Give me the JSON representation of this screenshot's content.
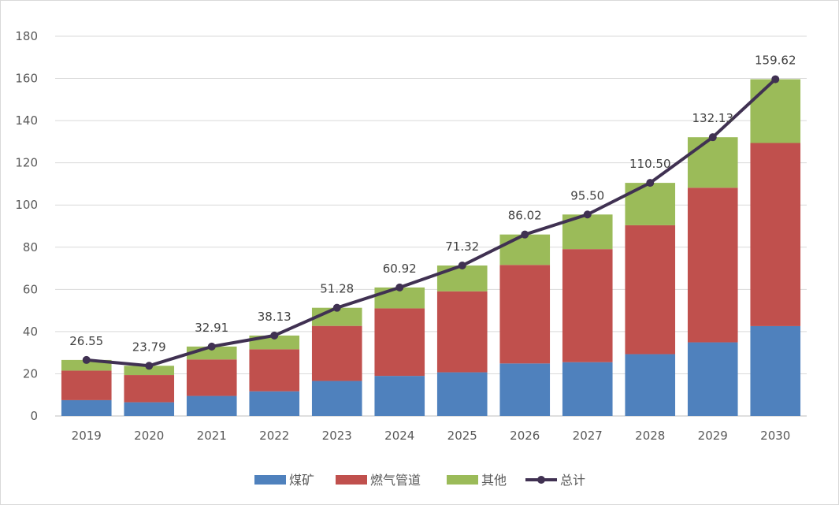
{
  "chart_data": {
    "type": "bar",
    "stacked": true,
    "categories": [
      "2019",
      "2020",
      "2021",
      "2022",
      "2023",
      "2024",
      "2025",
      "2026",
      "2027",
      "2028",
      "2029",
      "2030"
    ],
    "series": [
      {
        "name": "煤矿",
        "color": "#4f81bd",
        "values": [
          7.5,
          6.5,
          9.5,
          11.7,
          16.6,
          19.0,
          20.7,
          24.9,
          25.5,
          29.3,
          34.9,
          42.6
        ]
      },
      {
        "name": "燃气管道",
        "color": "#c0504d",
        "values": [
          14.0,
          12.9,
          17.3,
          19.9,
          26.1,
          32.0,
          38.4,
          46.7,
          53.6,
          61.1,
          73.3,
          86.8
        ]
      },
      {
        "name": "其他",
        "color": "#9bbb59",
        "values": [
          5.05,
          4.39,
          6.11,
          6.53,
          8.58,
          9.92,
          12.22,
          14.42,
          16.4,
          20.1,
          23.93,
          30.22
        ]
      }
    ],
    "line": {
      "name": "总计",
      "color": "#403152",
      "values": [
        26.55,
        23.79,
        32.91,
        38.13,
        51.28,
        60.92,
        71.32,
        86.02,
        95.5,
        110.5,
        132.13,
        159.62
      ]
    },
    "data_labels": [
      "26.55",
      "23.79",
      "32.91",
      "38.13",
      "51.28",
      "60.92",
      "71.32",
      "86.02",
      "95.50",
      "110.50",
      "132.13",
      "159.62"
    ],
    "y_ticks": [
      "0",
      "20",
      "40",
      "60",
      "80",
      "100",
      "120",
      "140",
      "160",
      "180"
    ],
    "ylim": [
      0,
      180
    ],
    "grid": true,
    "legend_position": "bottom"
  }
}
